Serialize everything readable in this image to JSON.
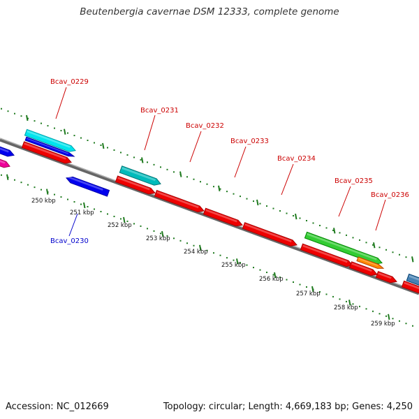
{
  "title": "Beutenbergia cavernae DSM 12333, complete genome",
  "footer": {
    "accession": "Accession: NC_012669",
    "summary": "Topology: circular; Length: 4,669,183 bp; Genes: 4,250"
  },
  "colors": {
    "background": "#ffffff",
    "backbone": "#888888",
    "tick": "#1e7a1e",
    "label_forward": "#cc0000",
    "label_reverse": "#0000cc",
    "kbp_label": "#111111"
  },
  "gene_labels": [
    {
      "name": "Bcav_0229",
      "strand": "forward"
    },
    {
      "name": "Bcav_0231",
      "strand": "forward"
    },
    {
      "name": "Bcav_0232",
      "strand": "forward"
    },
    {
      "name": "Bcav_0233",
      "strand": "forward"
    },
    {
      "name": "Bcav_0234",
      "strand": "forward"
    },
    {
      "name": "Bcav_0235",
      "strand": "forward"
    },
    {
      "name": "Bcav_0236",
      "strand": "forward"
    },
    {
      "name": "Bcav_0230",
      "strand": "reverse"
    }
  ],
  "kbp_labels": [
    "250 kbp",
    "251 kbp",
    "252 kbp",
    "253 kbp",
    "254 kbp",
    "255 kbp",
    "256 kbp",
    "257 kbp",
    "258 kbp",
    "259 kbp"
  ]
}
